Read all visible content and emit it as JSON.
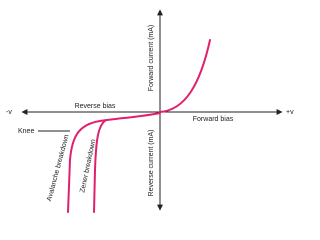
{
  "axes": {
    "y_top": "Forward current (mA)",
    "y_bottom": "Reverse current (mA)",
    "x_left": "-v",
    "x_right": "+v"
  },
  "regions": {
    "reverse_bias": "Reverse bias",
    "forward_bias": "Forward bias"
  },
  "annotations": {
    "knee": "Knee",
    "avalanche": "Avalanche breakdown",
    "zener": "Zener breakdown"
  }
}
